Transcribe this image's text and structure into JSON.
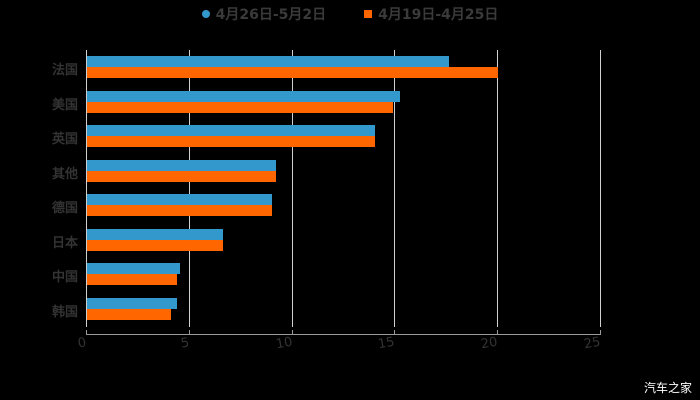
{
  "chart_data": {
    "type": "bar",
    "orientation": "horizontal",
    "title": "",
    "xlabel": "",
    "ylabel": "",
    "categories": [
      "法国",
      "美国",
      "英国",
      "其他",
      "德国",
      "日本",
      "中国",
      "韩国"
    ],
    "series": [
      {
        "name": "4月26日-5月2日",
        "color": "#3399cc",
        "values": [
          17.6,
          15.2,
          14.0,
          9.2,
          9.0,
          6.6,
          4.5,
          4.4
        ]
      },
      {
        "name": "4月19日-4月25日",
        "color": "#ff6600",
        "values": [
          20.0,
          14.9,
          14.0,
          9.2,
          9.0,
          6.6,
          4.4,
          4.1
        ]
      }
    ],
    "xlim": [
      0,
      25
    ],
    "xticks": [
      "0",
      "5",
      "10",
      "15",
      "20",
      "25"
    ],
    "grid": true,
    "legend_position": "top"
  },
  "legend": {
    "series1": "4月26日-5月2日",
    "series2": "4月19日-4月25日"
  },
  "watermark": "汽车之家"
}
